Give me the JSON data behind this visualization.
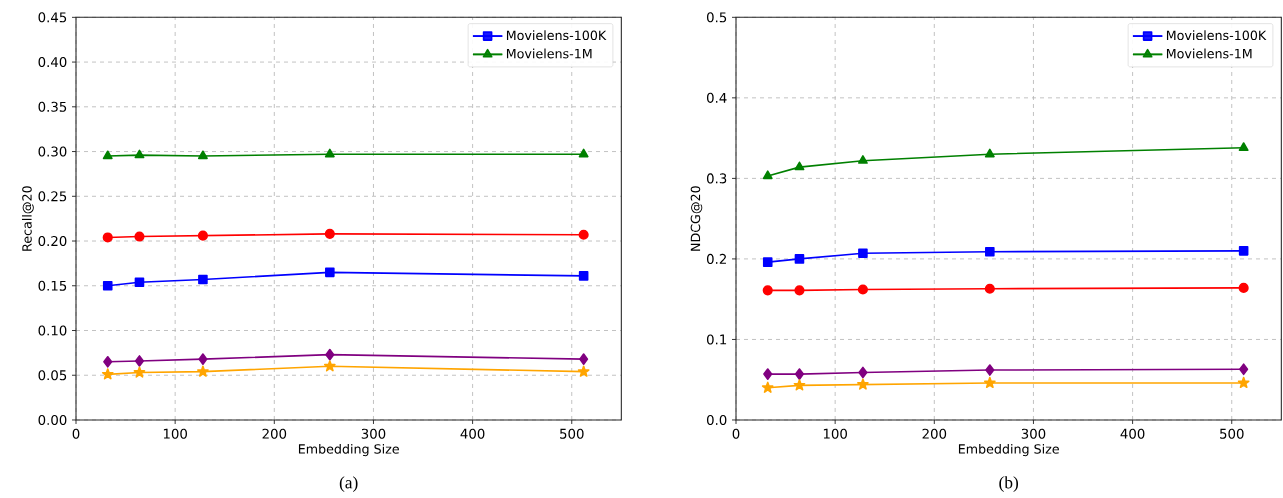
{
  "chart_data": [
    {
      "type": "line",
      "xlabel": "Embedding Size",
      "ylabel": "Recall@20",
      "annotations": [
        "(a)"
      ],
      "grid": true,
      "legend": "top right",
      "xlim": [
        0,
        550
      ],
      "ylim": [
        0,
        0.45
      ],
      "xticks": [
        0,
        100,
        200,
        300,
        400,
        500
      ],
      "yticks": [
        {
          "value": 0,
          "label": "0.00"
        },
        {
          "value": 0.05,
          "label": "0.05"
        },
        {
          "value": 0.1,
          "label": "0.10"
        },
        {
          "value": 0.15,
          "label": "0.15"
        },
        {
          "value": 0.2,
          "label": "0.20"
        },
        {
          "value": 0.25,
          "label": "0.25"
        },
        {
          "value": 0.3,
          "label": "0.30"
        },
        {
          "value": 0.35,
          "label": "0.35"
        },
        {
          "value": 0.4,
          "label": "0.40"
        },
        {
          "value": 0.45,
          "label": "0.45"
        }
      ],
      "x": [
        32,
        64,
        128,
        256,
        512
      ],
      "series": [
        {
          "color": "#ff0000",
          "marker": "circle",
          "values": [
            0.204,
            0.205,
            0.206,
            0.208,
            0.207
          ]
        },
        {
          "name": "Movielens-100K",
          "color": "#0000ff",
          "marker": "square",
          "values": [
            0.15,
            0.154,
            0.157,
            0.165,
            0.161
          ]
        },
        {
          "name": "Movielens-1M",
          "color": "#008000",
          "marker": "triangle",
          "values": [
            0.295,
            0.296,
            0.295,
            0.297,
            0.297
          ]
        },
        {
          "color": "#800080",
          "marker": "diamond",
          "values": [
            0.065,
            0.066,
            0.068,
            0.073,
            0.068
          ]
        },
        {
          "color": "#ffa500",
          "marker": "star",
          "values": [
            0.051,
            0.053,
            0.054,
            0.06,
            0.054
          ]
        }
      ]
    },
    {
      "type": "line",
      "xlabel": "Embedding Size",
      "ylabel": "NDCG@20",
      "annotations": [
        "(b)"
      ],
      "grid": true,
      "legend": "top right",
      "xlim": [
        0,
        550
      ],
      "ylim": [
        0,
        0.5
      ],
      "xticks": [
        0,
        100,
        200,
        300,
        400,
        500
      ],
      "yticks": [
        {
          "value": 0,
          "label": "0.0"
        },
        0.1,
        0.2,
        0.3,
        0.4,
        0.5
      ],
      "x": [
        32,
        64,
        128,
        256,
        512
      ],
      "series": [
        {
          "color": "#ff0000",
          "marker": "circle",
          "values": [
            0.161,
            0.161,
            0.162,
            0.163,
            0.164
          ]
        },
        {
          "name": "Movielens-100K",
          "color": "#0000ff",
          "marker": "square",
          "values": [
            0.196,
            0.2,
            0.207,
            0.209,
            0.21
          ]
        },
        {
          "name": "Movielens-1M",
          "color": "#008000",
          "marker": "triangle",
          "values": [
            0.303,
            0.314,
            0.322,
            0.33,
            0.338
          ]
        },
        {
          "color": "#800080",
          "marker": "diamond",
          "values": [
            0.057,
            0.057,
            0.059,
            0.062,
            0.063
          ]
        },
        {
          "color": "#ffa500",
          "marker": "star",
          "values": [
            0.04,
            0.043,
            0.044,
            0.046,
            0.046
          ]
        }
      ]
    }
  ]
}
